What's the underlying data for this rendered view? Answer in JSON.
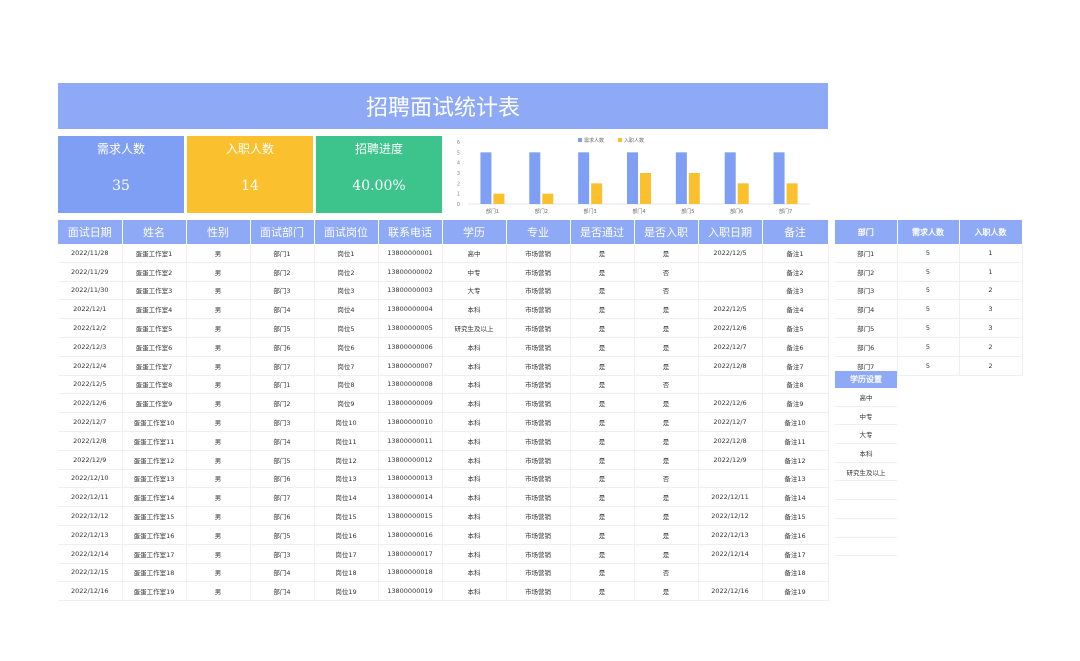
{
  "title": "招聘面试统计表",
  "stats": [
    {
      "label": "需求人数",
      "value": "35"
    },
    {
      "label": "入职人数",
      "value": "14"
    },
    {
      "label": "招聘进度",
      "value": "40.00%"
    }
  ],
  "colors": {
    "header": "#8eaaf7",
    "demand": "#7f9ff5",
    "hired": "#fbc02d",
    "progress": "#3cc48c"
  },
  "chart_data": {
    "type": "bar",
    "categories": [
      "部门1",
      "部门2",
      "部门3",
      "部门4",
      "部门5",
      "部门6",
      "部门7"
    ],
    "series": [
      {
        "name": "需求人数",
        "values": [
          5,
          5,
          5,
          5,
          5,
          5,
          5
        ],
        "color": "#7f9ff5"
      },
      {
        "name": "入职人数",
        "values": [
          1,
          1,
          2,
          3,
          3,
          2,
          2
        ],
        "color": "#fbc02d"
      }
    ],
    "ylim": [
      0,
      6
    ],
    "yticks": [
      "0",
      "1",
      "2",
      "3",
      "4",
      "5",
      "6"
    ],
    "legend": "top"
  },
  "table": {
    "headers": [
      "面试日期",
      "姓名",
      "性别",
      "面试部门",
      "面试岗位",
      "联系电话",
      "学历",
      "专业",
      "是否通过",
      "是否入职",
      "入职日期",
      "备注"
    ],
    "rows": [
      [
        "2022/11/28",
        "蛋蛋工作室1",
        "男",
        "部门1",
        "岗位1",
        "13800000001",
        "高中",
        "市场营销",
        "是",
        "是",
        "2022/12/5",
        "备注1"
      ],
      [
        "2022/11/29",
        "蛋蛋工作室2",
        "男",
        "部门2",
        "岗位2",
        "13800000002",
        "中专",
        "市场营销",
        "是",
        "否",
        "",
        "备注2"
      ],
      [
        "2022/11/30",
        "蛋蛋工作室3",
        "男",
        "部门3",
        "岗位3",
        "13800000003",
        "大专",
        "市场营销",
        "是",
        "否",
        "",
        "备注3"
      ],
      [
        "2022/12/1",
        "蛋蛋工作室4",
        "男",
        "部门4",
        "岗位4",
        "13800000004",
        "本科",
        "市场营销",
        "是",
        "是",
        "2022/12/5",
        "备注4"
      ],
      [
        "2022/12/2",
        "蛋蛋工作室5",
        "男",
        "部门5",
        "岗位5",
        "13800000005",
        "研究生及以上",
        "市场营销",
        "是",
        "是",
        "2022/12/6",
        "备注5"
      ],
      [
        "2022/12/3",
        "蛋蛋工作室6",
        "男",
        "部门6",
        "岗位6",
        "13800000006",
        "本科",
        "市场营销",
        "是",
        "是",
        "2022/12/7",
        "备注6"
      ],
      [
        "2022/12/4",
        "蛋蛋工作室7",
        "男",
        "部门7",
        "岗位7",
        "13800000007",
        "本科",
        "市场营销",
        "是",
        "是",
        "2022/12/8",
        "备注7"
      ],
      [
        "2022/12/5",
        "蛋蛋工作室8",
        "男",
        "部门1",
        "岗位8",
        "13800000008",
        "本科",
        "市场营销",
        "是",
        "否",
        "",
        "备注8"
      ],
      [
        "2022/12/6",
        "蛋蛋工作室9",
        "男",
        "部门2",
        "岗位9",
        "13800000009",
        "本科",
        "市场营销",
        "是",
        "是",
        "2022/12/6",
        "备注9"
      ],
      [
        "2022/12/7",
        "蛋蛋工作室10",
        "男",
        "部门3",
        "岗位10",
        "13800000010",
        "本科",
        "市场营销",
        "是",
        "是",
        "2022/12/7",
        "备注10"
      ],
      [
        "2022/12/8",
        "蛋蛋工作室11",
        "男",
        "部门4",
        "岗位11",
        "13800000011",
        "本科",
        "市场营销",
        "是",
        "是",
        "2022/12/8",
        "备注11"
      ],
      [
        "2022/12/9",
        "蛋蛋工作室12",
        "男",
        "部门5",
        "岗位12",
        "13800000012",
        "本科",
        "市场营销",
        "是",
        "是",
        "2022/12/9",
        "备注12"
      ],
      [
        "2022/12/10",
        "蛋蛋工作室13",
        "男",
        "部门6",
        "岗位13",
        "13800000013",
        "本科",
        "市场营销",
        "是",
        "否",
        "",
        "备注13"
      ],
      [
        "2022/12/11",
        "蛋蛋工作室14",
        "男",
        "部门7",
        "岗位14",
        "13800000014",
        "本科",
        "市场营销",
        "是",
        "是",
        "2022/12/11",
        "备注14"
      ],
      [
        "2022/12/12",
        "蛋蛋工作室15",
        "男",
        "部门6",
        "岗位15",
        "13800000015",
        "本科",
        "市场营销",
        "是",
        "是",
        "2022/12/12",
        "备注15"
      ],
      [
        "2022/12/13",
        "蛋蛋工作室16",
        "男",
        "部门5",
        "岗位16",
        "13800000016",
        "本科",
        "市场营销",
        "是",
        "是",
        "2022/12/13",
        "备注16"
      ],
      [
        "2022/12/14",
        "蛋蛋工作室17",
        "男",
        "部门3",
        "岗位17",
        "13800000017",
        "本科",
        "市场营销",
        "是",
        "是",
        "2022/12/14",
        "备注17"
      ],
      [
        "2022/12/15",
        "蛋蛋工作室18",
        "男",
        "部门4",
        "岗位18",
        "13800000018",
        "本科",
        "市场营销",
        "是",
        "否",
        "",
        "备注18"
      ],
      [
        "2022/12/16",
        "蛋蛋工作室19",
        "男",
        "部门4",
        "岗位19",
        "13800000019",
        "本科",
        "市场营销",
        "是",
        "是",
        "2022/12/16",
        "备注19"
      ]
    ]
  },
  "dept_table": {
    "headers": [
      "部门",
      "需求人数",
      "入职人数"
    ],
    "rows": [
      [
        "部门1",
        "5",
        "1"
      ],
      [
        "部门2",
        "5",
        "1"
      ],
      [
        "部门3",
        "5",
        "2"
      ],
      [
        "部门4",
        "5",
        "3"
      ],
      [
        "部门5",
        "5",
        "3"
      ],
      [
        "部门6",
        "5",
        "2"
      ],
      [
        "部门7",
        "5",
        "2"
      ]
    ]
  },
  "education": {
    "title": "学历设置",
    "items": [
      "高中",
      "中专",
      "大专",
      "本科",
      "研究生及以上",
      "",
      "",
      "",
      ""
    ]
  }
}
